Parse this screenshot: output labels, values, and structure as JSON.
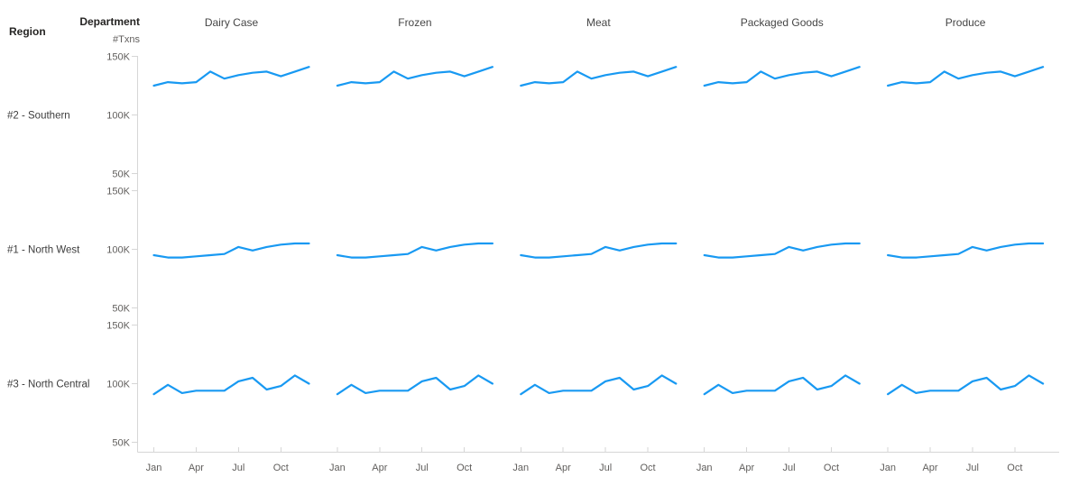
{
  "header": {
    "row_field_label": "Region",
    "column_field_label": "Department",
    "y_axis_title": "#Txns"
  },
  "chart_data": {
    "type": "line",
    "layout": "small-multiples-grid",
    "row_field": "Region",
    "column_field": "Department",
    "series_name": "#Txns",
    "series_color": "#1899F2",
    "columns": [
      "Dairy Case",
      "Frozen",
      "Meat",
      "Packaged Goods",
      "Produce"
    ],
    "x": [
      "Jan",
      "Feb",
      "Mar",
      "Apr",
      "May",
      "Jun",
      "Jul",
      "Aug",
      "Sep",
      "Oct",
      "Nov",
      "Dec"
    ],
    "x_tick_labels_shown": [
      "Jan",
      "Apr",
      "Jul",
      "Oct"
    ],
    "y_axis": {
      "title": "#Txns",
      "tick_labels": [
        "150K",
        "100K",
        "50K"
      ],
      "tick_values_k": [
        150,
        100,
        50
      ],
      "range_k": [
        50,
        157
      ],
      "units": "thousands of transactions"
    },
    "rows": [
      {
        "region": "#2 - Southern",
        "values_k": [
          125,
          128,
          127,
          128,
          137,
          131,
          134,
          136,
          137,
          133,
          137,
          141
        ],
        "same_series_in_all_departments": true
      },
      {
        "region": "#1 - North West",
        "values_k": [
          95,
          93,
          93,
          94,
          95,
          96,
          102,
          99,
          102,
          104,
          105,
          105
        ],
        "same_series_in_all_departments": true
      },
      {
        "region": "#3 - North Central",
        "values_k": [
          91,
          99,
          92,
          94,
          94,
          94,
          102,
          105,
          95,
          98,
          107,
          100
        ],
        "same_series_in_all_departments": true
      }
    ]
  }
}
